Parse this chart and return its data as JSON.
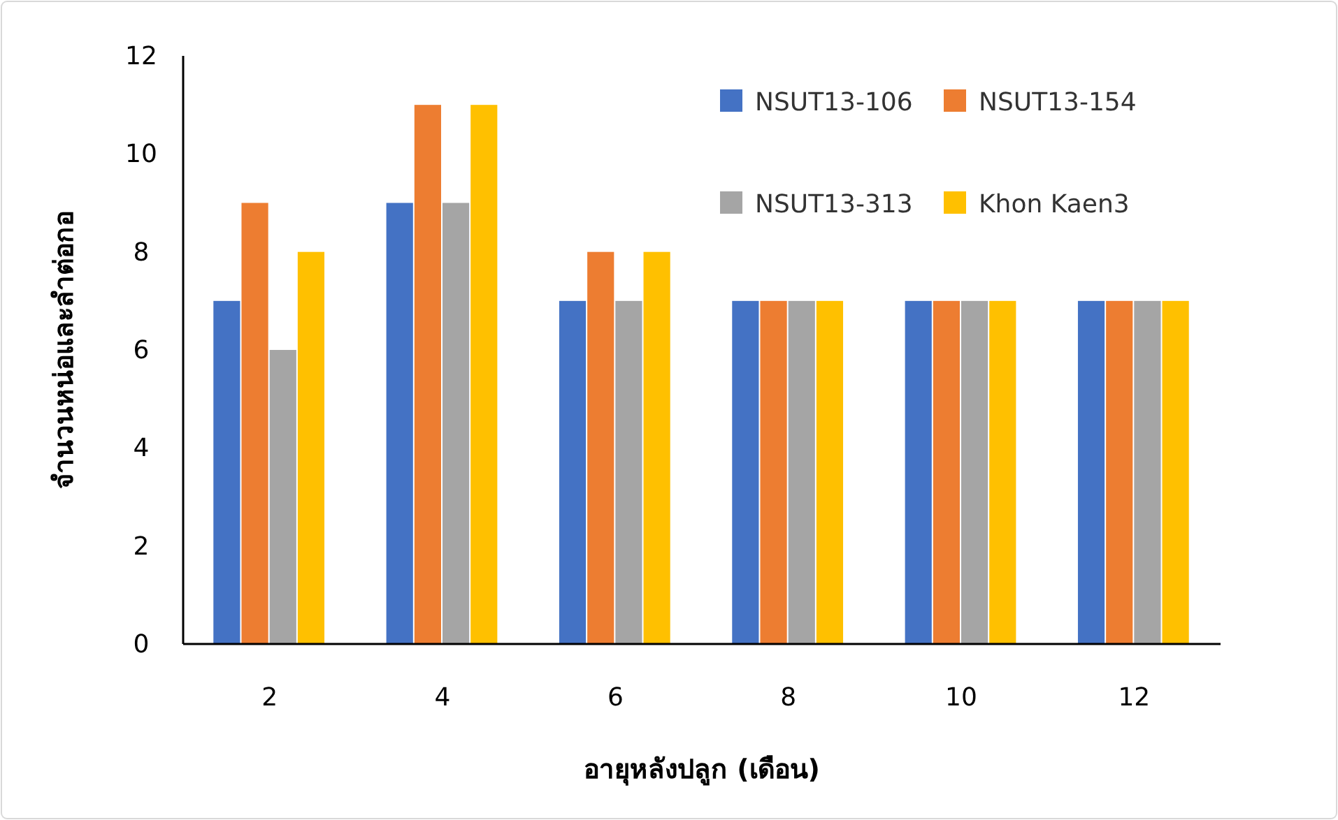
{
  "chart_data": {
    "type": "bar",
    "categories": [
      "2",
      "4",
      "6",
      "8",
      "10",
      "12"
    ],
    "series": [
      {
        "name": "NSUT13-106",
        "color": "#4472c4",
        "values": [
          7,
          9,
          7,
          7,
          7,
          7
        ]
      },
      {
        "name": "NSUT13-154",
        "color": "#ed7d31",
        "values": [
          9,
          11,
          8,
          7,
          7,
          7
        ]
      },
      {
        "name": "NSUT13-313",
        "color": "#a5a5a5",
        "values": [
          6,
          9,
          7,
          7,
          7,
          7
        ]
      },
      {
        "name": "Khon Kaen3",
        "color": "#ffc000",
        "values": [
          8,
          11,
          8,
          7,
          7,
          7
        ]
      }
    ],
    "ylim": [
      0,
      12
    ],
    "yticks": [
      0,
      2,
      4,
      6,
      8,
      10,
      12
    ],
    "xlabel": "อายุหลังปลูก (เดือน)",
    "ylabel": "จำนวนหน่อและลำต่อกอ",
    "legend": "top right"
  }
}
